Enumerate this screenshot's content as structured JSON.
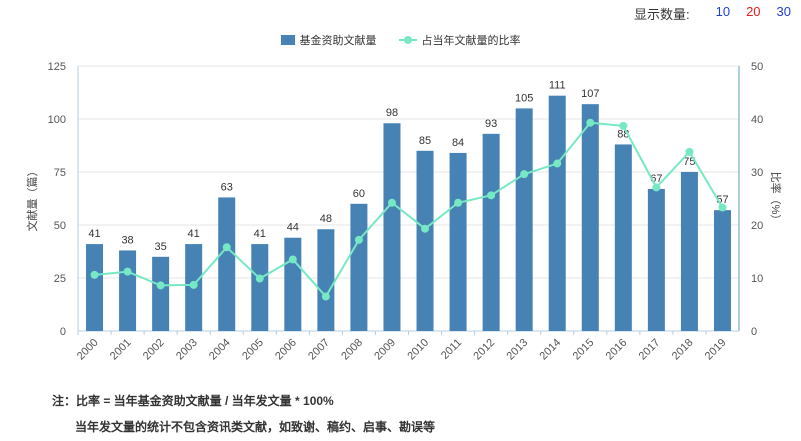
{
  "display_count": {
    "label": "显示数量:",
    "options": [
      {
        "label": "10",
        "color": "#1f3fd6"
      },
      {
        "label": "20",
        "color": "#e02020"
      },
      {
        "label": "30",
        "color": "#1f3fd6"
      }
    ]
  },
  "notes": {
    "line1": "注：比率 = 当年基金资助文献量 / 当年发文量 * 100%",
    "line2": "当年发文量的统计不包含资讯类文献，如致谢、稿约、启事、勘误等"
  },
  "chart_data": {
    "type": "bar+line",
    "categories": [
      "2000",
      "2001",
      "2002",
      "2003",
      "2004",
      "2005",
      "2006",
      "2007",
      "2008",
      "2009",
      "2010",
      "2011",
      "2012",
      "2013",
      "2014",
      "2015",
      "2016",
      "2017",
      "2018",
      "2019"
    ],
    "series": [
      {
        "name": "基金资助文献量",
        "type": "bar",
        "axis": "left",
        "color": "#4682b4",
        "values": [
          41,
          38,
          35,
          41,
          63,
          41,
          44,
          48,
          60,
          98,
          85,
          84,
          93,
          105,
          111,
          107,
          88,
          67,
          75,
          57
        ]
      },
      {
        "name": "占当年文献量的比率",
        "type": "line",
        "axis": "right",
        "color": "#76e8c4",
        "values": [
          10.6,
          11.2,
          8.6,
          8.7,
          15.8,
          9.9,
          13.5,
          6.5,
          17.2,
          24.2,
          19.3,
          24.2,
          25.6,
          29.6,
          31.6,
          39.3,
          38.7,
          27.1,
          33.8,
          23.3
        ]
      }
    ],
    "yaxis_left": {
      "label": "文献量（篇）",
      "range": [
        0,
        125
      ],
      "ticks": [
        "0",
        "25",
        "50",
        "75",
        "100",
        "125"
      ]
    },
    "yaxis_right": {
      "label": "比率（%）",
      "range": [
        0,
        50
      ],
      "ticks": [
        "0",
        "10",
        "20",
        "30",
        "40",
        "50"
      ]
    },
    "bar_labels": [
      "41",
      "38",
      "35",
      "41",
      "63",
      "41",
      "44",
      "48",
      "60",
      "98",
      "85",
      "84",
      "93",
      "105",
      "111",
      "107",
      "88",
      "67",
      "75",
      "57"
    ],
    "grid": true,
    "legend_position": "top-center"
  }
}
